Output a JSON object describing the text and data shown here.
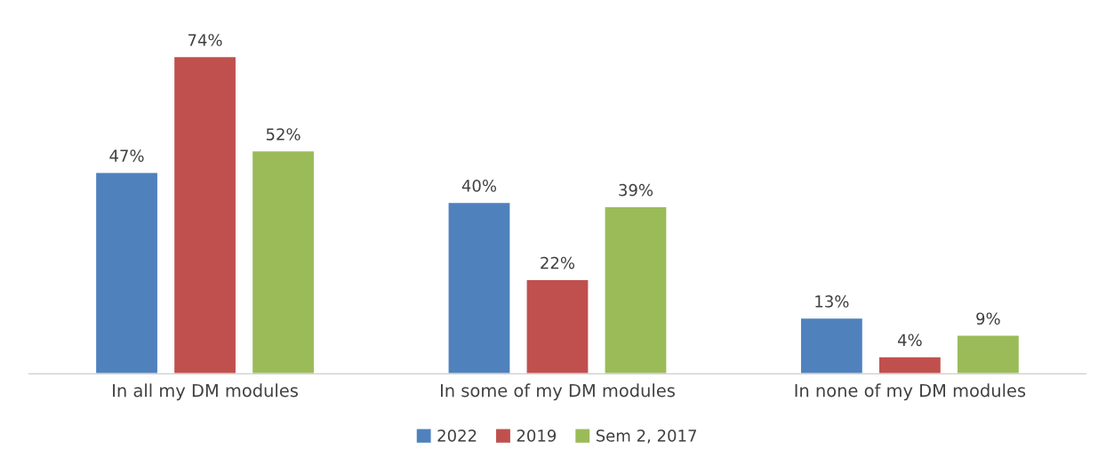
{
  "chart_data": {
    "type": "bar",
    "categories": [
      "In all my DM modules",
      "In some of my DM modules",
      "In none of my DM modules"
    ],
    "series": [
      {
        "name": "2022",
        "color": "#4f81bd",
        "values": [
          47,
          40,
          13
        ],
        "value_labels": [
          "47%",
          "40%",
          "13%"
        ]
      },
      {
        "name": "2019",
        "color": "#c0504d",
        "values": [
          74,
          22,
          4
        ],
        "value_labels": [
          "74%",
          "22%",
          "4%"
        ]
      },
      {
        "name": "Sem 2, 2017",
        "color": "#9bbb59",
        "values": [
          52,
          39,
          9
        ],
        "value_labels": [
          "52%",
          "39%",
          "9%"
        ]
      }
    ],
    "legend": "bottom",
    "grid": false,
    "tick_labels": "x"
  }
}
